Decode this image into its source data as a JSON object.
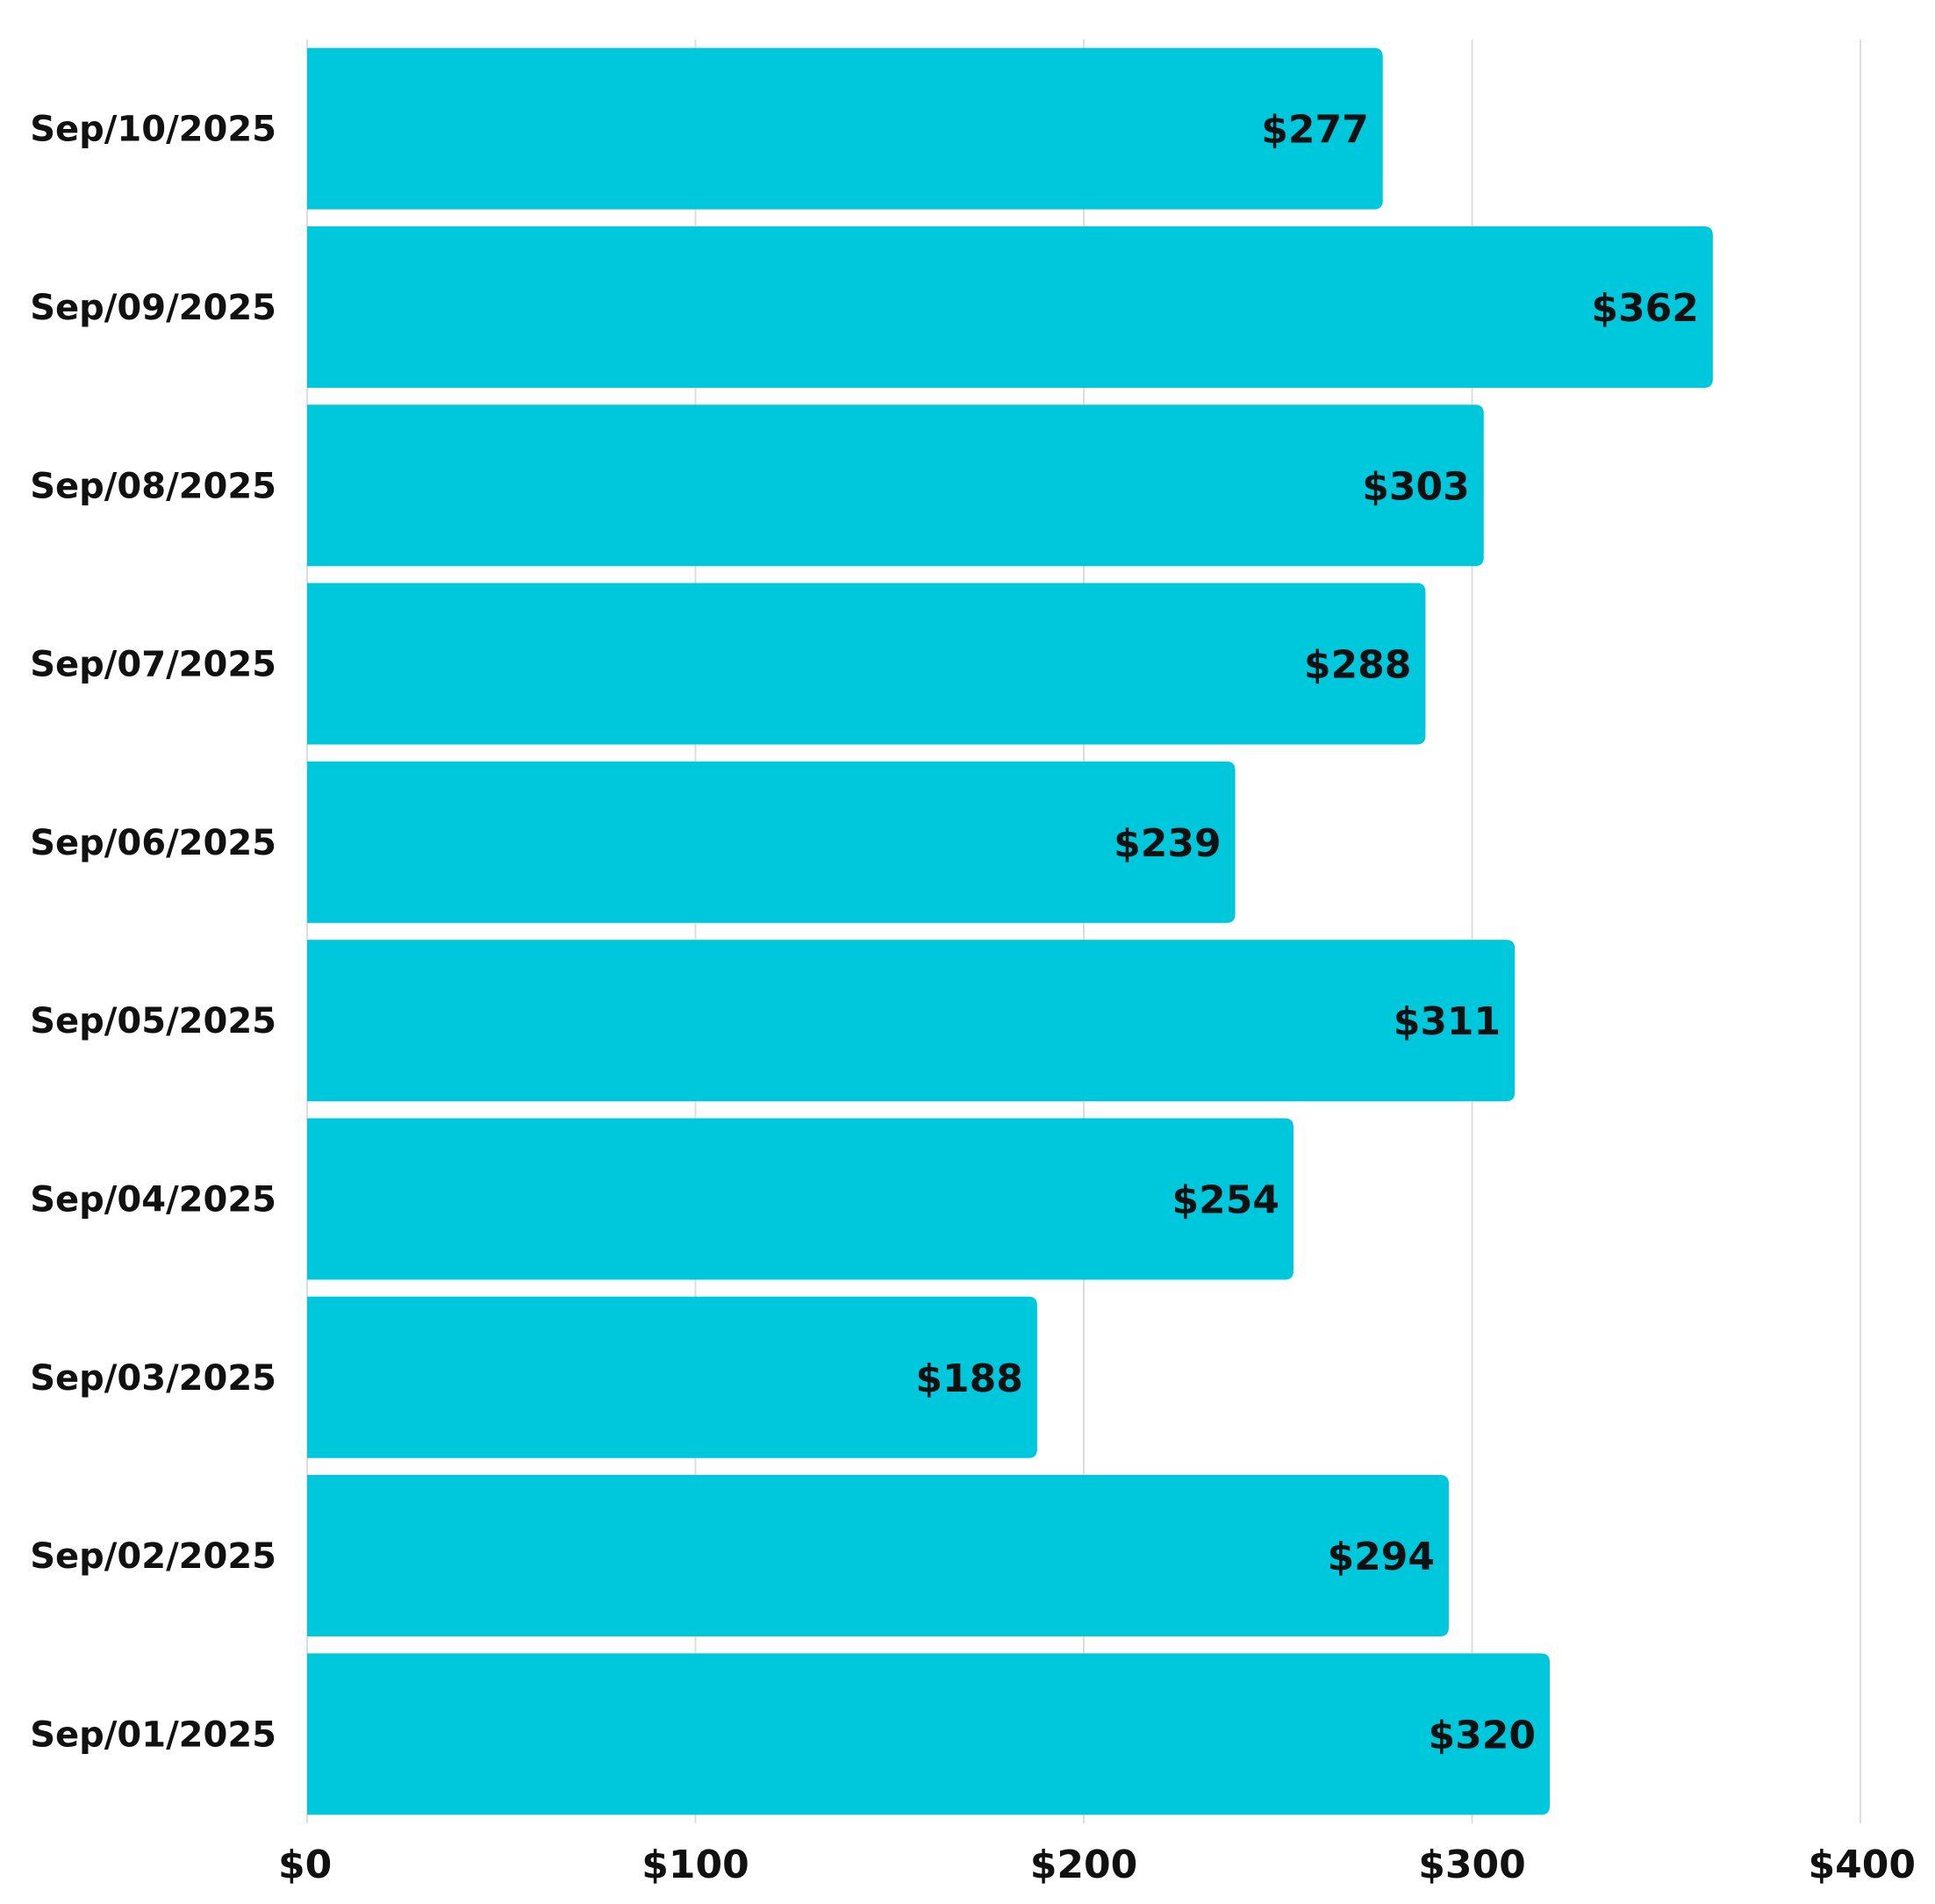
{
  "chart_data": {
    "type": "bar",
    "orientation": "horizontal",
    "categories": [
      "Sep/10/2025",
      "Sep/09/2025",
      "Sep/08/2025",
      "Sep/07/2025",
      "Sep/06/2025",
      "Sep/05/2025",
      "Sep/04/2025",
      "Sep/03/2025",
      "Sep/02/2025",
      "Sep/01/2025"
    ],
    "values": [
      277,
      362,
      303,
      288,
      239,
      311,
      254,
      188,
      294,
      320
    ],
    "value_labels": [
      "$277",
      "$362",
      "$303",
      "$288",
      "$239",
      "$311",
      "$254",
      "$188",
      "$294",
      "$320"
    ],
    "x_ticks": [
      0,
      100,
      200,
      300,
      400
    ],
    "x_tick_labels": [
      "$0",
      "$100",
      "$200",
      "$300",
      "$400"
    ],
    "xlim": [
      0,
      400
    ],
    "grid": true,
    "title": "",
    "xlabel": "",
    "ylabel": "",
    "bar_color": "#00c8dc"
  }
}
